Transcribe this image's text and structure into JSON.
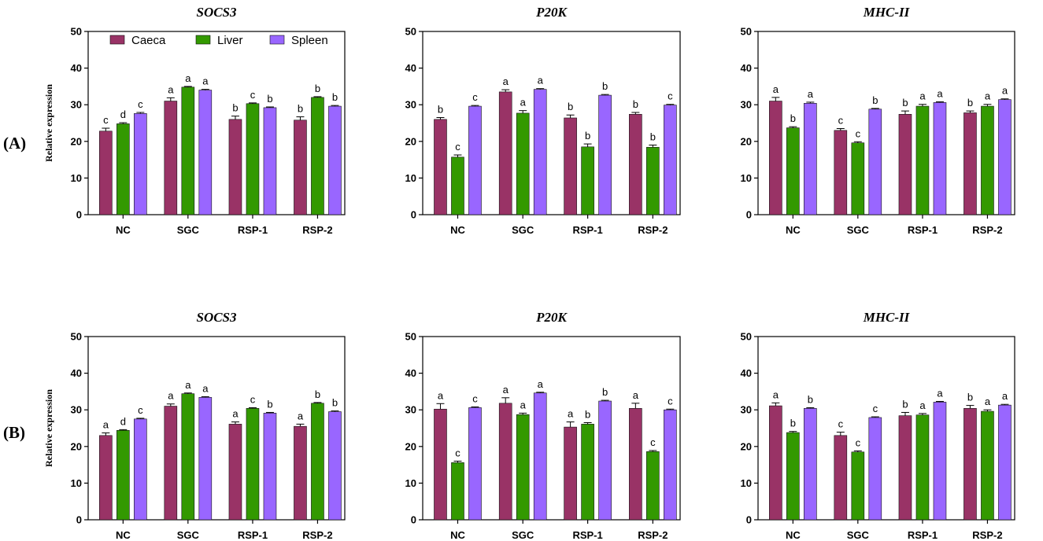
{
  "colors": {
    "Caeca": "#993366",
    "Liver": "#339900",
    "Spleen": "#9966FF"
  },
  "legend": [
    "Caeca",
    "Liver",
    "Spleen"
  ],
  "panels": [
    {
      "label": "(A)",
      "ylabel": "Relative  expression"
    },
    {
      "label": "(B)",
      "ylabel": "Relative  expression"
    }
  ],
  "chart_data": [
    {
      "type": "bar",
      "panel": "(A)",
      "title": "SOCS3",
      "categories": [
        "NC",
        "SGC",
        "RSP-1",
        "RSP-2"
      ],
      "ylim": [
        0,
        50
      ],
      "yticks": [
        0,
        10,
        20,
        30,
        40,
        50
      ],
      "ylabel": "Relative  expression",
      "series": [
        {
          "name": "Caeca",
          "values": [
            22.8,
            31.0,
            26.0,
            25.8
          ],
          "errors": [
            0.8,
            0.9,
            0.9,
            0.9
          ],
          "letters": [
            "c",
            "a",
            "b",
            "b"
          ]
        },
        {
          "name": "Liver",
          "values": [
            24.8,
            34.8,
            30.3,
            32.0
          ],
          "errors": [
            0.3,
            0.2,
            0.2,
            0.2
          ],
          "letters": [
            "d",
            "a",
            "c",
            "b"
          ]
        },
        {
          "name": "Spleen",
          "values": [
            27.6,
            34.0,
            29.2,
            29.6
          ],
          "errors": [
            0.3,
            0.2,
            0.2,
            0.2
          ],
          "letters": [
            "c",
            "a",
            "b",
            "b"
          ]
        }
      ]
    },
    {
      "type": "bar",
      "panel": "(A)",
      "title": "P20K",
      "categories": [
        "NC",
        "SGC",
        "RSP-1",
        "RSP-2"
      ],
      "ylim": [
        0,
        50
      ],
      "yticks": [
        0,
        10,
        20,
        30,
        40,
        50
      ],
      "ylabel": "",
      "series": [
        {
          "name": "Caeca",
          "values": [
            26.0,
            33.5,
            26.4,
            27.4
          ],
          "errors": [
            0.5,
            0.6,
            0.8,
            0.5
          ],
          "letters": [
            "b",
            "a",
            "b",
            "b"
          ]
        },
        {
          "name": "Liver",
          "values": [
            15.7,
            27.7,
            18.5,
            18.4
          ],
          "errors": [
            0.6,
            0.7,
            0.8,
            0.6
          ],
          "letters": [
            "c",
            "a",
            "b",
            "b"
          ]
        },
        {
          "name": "Spleen",
          "values": [
            29.6,
            34.2,
            32.6,
            29.9
          ],
          "errors": [
            0.2,
            0.2,
            0.2,
            0.2
          ],
          "letters": [
            "c",
            "a",
            "b",
            "c"
          ]
        }
      ]
    },
    {
      "type": "bar",
      "panel": "(A)",
      "title": "MHC-II",
      "categories": [
        "NC",
        "SGC",
        "RSP-1",
        "RSP-2"
      ],
      "ylim": [
        0,
        50
      ],
      "yticks": [
        0,
        10,
        20,
        30,
        40,
        50
      ],
      "ylabel": "",
      "series": [
        {
          "name": "Caeca",
          "values": [
            31.0,
            23.0,
            27.4,
            27.8
          ],
          "errors": [
            1.0,
            0.5,
            0.9,
            0.5
          ],
          "letters": [
            "a",
            "c",
            "b",
            "b"
          ]
        },
        {
          "name": "Liver",
          "values": [
            23.7,
            19.6,
            29.6,
            29.6
          ],
          "errors": [
            0.3,
            0.3,
            0.5,
            0.5
          ],
          "letters": [
            "b",
            "c",
            "a",
            "a"
          ]
        },
        {
          "name": "Spleen",
          "values": [
            30.4,
            28.8,
            30.6,
            31.4
          ],
          "errors": [
            0.3,
            0.2,
            0.2,
            0.2
          ],
          "letters": [
            "a",
            "b",
            "a",
            "a"
          ]
        }
      ]
    },
    {
      "type": "bar",
      "panel": "(B)",
      "title": "SOCS3",
      "categories": [
        "NC",
        "SGC",
        "RSP-1",
        "RSP-2"
      ],
      "ylim": [
        0,
        50
      ],
      "yticks": [
        0,
        10,
        20,
        30,
        40,
        50
      ],
      "ylabel": "Relative  expression",
      "series": [
        {
          "name": "Caeca",
          "values": [
            23.0,
            31.0,
            26.1,
            25.5
          ],
          "errors": [
            0.7,
            0.6,
            0.6,
            0.6
          ],
          "letters": [
            "a",
            "a",
            "a",
            "a"
          ]
        },
        {
          "name": "Liver",
          "values": [
            24.4,
            34.4,
            30.4,
            31.8
          ],
          "errors": [
            0.2,
            0.2,
            0.2,
            0.2
          ],
          "letters": [
            "d",
            "a",
            "c",
            "b"
          ]
        },
        {
          "name": "Spleen",
          "values": [
            27.5,
            33.4,
            29.1,
            29.5
          ],
          "errors": [
            0.2,
            0.2,
            0.2,
            0.2
          ],
          "letters": [
            "c",
            "a",
            "b",
            "b"
          ]
        }
      ]
    },
    {
      "type": "bar",
      "panel": "(B)",
      "title": "P20K",
      "categories": [
        "NC",
        "SGC",
        "RSP-1",
        "RSP-2"
      ],
      "ylim": [
        0,
        50
      ],
      "yticks": [
        0,
        10,
        20,
        30,
        40,
        50
      ],
      "ylabel": "",
      "series": [
        {
          "name": "Caeca",
          "values": [
            30.2,
            31.8,
            25.3,
            30.4
          ],
          "errors": [
            1.5,
            1.5,
            1.4,
            1.4
          ],
          "letters": [
            "a",
            "a",
            "a",
            "a"
          ]
        },
        {
          "name": "Liver",
          "values": [
            15.6,
            28.7,
            26.1,
            18.6
          ],
          "errors": [
            0.4,
            0.4,
            0.4,
            0.3
          ],
          "letters": [
            "c",
            "a",
            "b",
            "c"
          ]
        },
        {
          "name": "Spleen",
          "values": [
            30.6,
            34.6,
            32.4,
            30.0
          ],
          "errors": [
            0.2,
            0.2,
            0.2,
            0.2
          ],
          "letters": [
            "c",
            "a",
            "b",
            "c"
          ]
        }
      ]
    },
    {
      "type": "bar",
      "panel": "(B)",
      "title": "MHC-II",
      "categories": [
        "NC",
        "SGC",
        "RSP-1",
        "RSP-2"
      ],
      "ylim": [
        0,
        50
      ],
      "yticks": [
        0,
        10,
        20,
        30,
        40,
        50
      ],
      "ylabel": "",
      "series": [
        {
          "name": "Caeca",
          "values": [
            31.1,
            23.0,
            28.4,
            30.4
          ],
          "errors": [
            0.8,
            0.9,
            0.9,
            0.8
          ],
          "letters": [
            "a",
            "c",
            "b",
            "b"
          ]
        },
        {
          "name": "Liver",
          "values": [
            23.8,
            18.5,
            28.6,
            29.6
          ],
          "errors": [
            0.3,
            0.3,
            0.4,
            0.4
          ],
          "letters": [
            "b",
            "c",
            "a",
            "a"
          ]
        },
        {
          "name": "Spleen",
          "values": [
            30.4,
            27.9,
            32.1,
            31.3
          ],
          "errors": [
            0.2,
            0.2,
            0.2,
            0.2
          ],
          "letters": [
            "b",
            "c",
            "a",
            "a"
          ]
        }
      ]
    }
  ]
}
